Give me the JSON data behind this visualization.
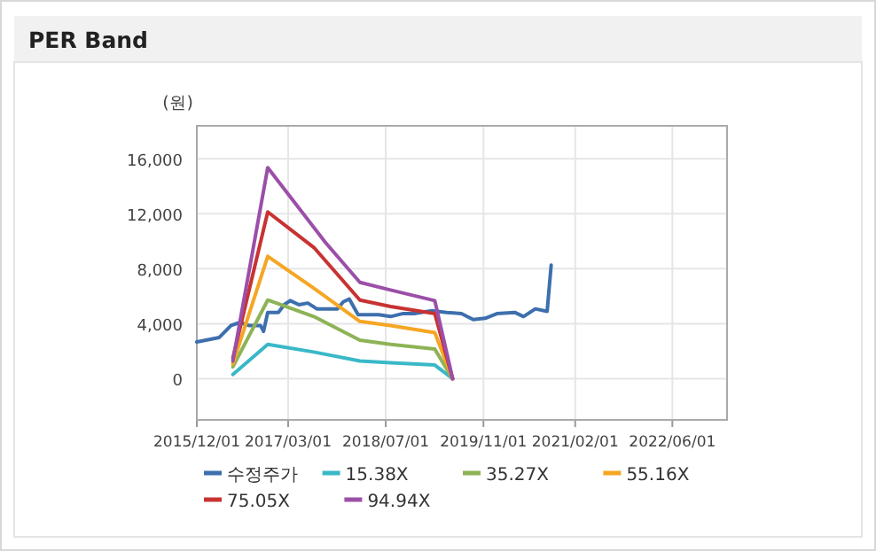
{
  "chart_data": {
    "type": "line",
    "title": "PER Band",
    "ylabel": "(원)",
    "xlim": [
      "2015-12-01",
      "2023-03-01"
    ],
    "ylim": [
      -3000,
      18400
    ],
    "xticks": [
      {
        "value": "2015-12-01",
        "label": "2015/12/01"
      },
      {
        "value": "2017-03-01",
        "label": "2017/03/01"
      },
      {
        "value": "2018-07-01",
        "label": "2018/07/01"
      },
      {
        "value": "2019-11-01",
        "label": "2019/11/01"
      },
      {
        "value": "2021-02-01",
        "label": "2021/02/01"
      },
      {
        "value": "2022-06-01",
        "label": "2022/06/01"
      }
    ],
    "yticks": [
      0,
      {
        "value": 4000,
        "label": "4,000"
      },
      {
        "value": 8000,
        "label": "8,000"
      },
      {
        "value": 12000,
        "label": "12,000"
      },
      {
        "value": 16000,
        "label": "16,000"
      }
    ],
    "grid": true,
    "legend": "bottom",
    "marker": "none",
    "line_style": "solid",
    "series": [
      {
        "name": "수정주가",
        "color": "#3d6fad",
        "x": [
          "2015-12-01",
          "2016-03-22",
          "2016-05-20",
          "2016-07-03",
          "2016-08-17",
          "2016-10-14",
          "2016-10-29",
          "2016-11-19",
          "2017-01-11",
          "2017-02-09",
          "2017-03-11",
          "2017-04-24",
          "2017-06-07",
          "2017-07-22",
          "2017-09-04",
          "2017-11-02",
          "2017-12-01",
          "2017-12-31",
          "2018-02-13",
          "2018-05-27",
          "2018-07-25",
          "2018-09-22",
          "2018-11-20",
          "2019-02-17",
          "2019-05-01",
          "2019-07-14",
          "2019-09-11",
          "2019-11-09",
          "2020-01-07",
          "2020-04-05",
          "2020-05-19",
          "2020-07-17",
          "2020-09-14",
          "2020-10-04"
        ],
        "values": [
          2670,
          3000,
          3870,
          4090,
          3870,
          3870,
          3440,
          4820,
          4820,
          5380,
          5680,
          5380,
          5500,
          5080,
          5080,
          5080,
          5590,
          5800,
          4650,
          4650,
          4520,
          4730,
          4730,
          4950,
          4820,
          4730,
          4300,
          4390,
          4730,
          4820,
          4520,
          5080,
          4900,
          8260
        ]
      },
      {
        "name": "15.38X",
        "color": "#3ab8c8",
        "x": [
          "2016-05-29",
          "2016-11-19",
          "2017-07-07",
          "2018-02-22",
          "2018-07-25",
          "2019-03-03",
          "2019-05-31"
        ],
        "values": [
          300,
          2490,
          1940,
          1290,
          1160,
          990,
          0
        ]
      },
      {
        "name": "35.27X",
        "color": "#8db356",
        "x": [
          "2016-05-29",
          "2016-11-19",
          "2017-07-07",
          "2018-02-22",
          "2018-07-25",
          "2019-03-03",
          "2019-05-31"
        ],
        "values": [
          860,
          5720,
          4520,
          2800,
          2490,
          2150,
          0
        ]
      },
      {
        "name": "55.16X",
        "color": "#f5a623",
        "x": [
          "2016-05-29",
          "2016-11-19",
          "2017-07-07",
          "2018-02-22",
          "2018-07-25",
          "2019-03-03",
          "2019-05-31"
        ],
        "values": [
          1080,
          8900,
          6580,
          4170,
          3870,
          3350,
          0
        ]
      },
      {
        "name": "75.05X",
        "color": "#c83232",
        "x": [
          "2016-05-29",
          "2016-11-19",
          "2017-07-07",
          "2018-02-22",
          "2018-07-25",
          "2019-03-03",
          "2019-05-31"
        ],
        "values": [
          1500,
          12130,
          9550,
          5720,
          5250,
          4730,
          0
        ]
      },
      {
        "name": "94.94X",
        "color": "#9b4fa8",
        "x": [
          "2016-05-29",
          "2016-11-19",
          "2017-09-04",
          "2018-02-22",
          "2018-07-25",
          "2019-03-03",
          "2019-05-31"
        ],
        "values": [
          1290,
          15360,
          9890,
          7010,
          6450,
          5680,
          0
        ]
      }
    ]
  }
}
